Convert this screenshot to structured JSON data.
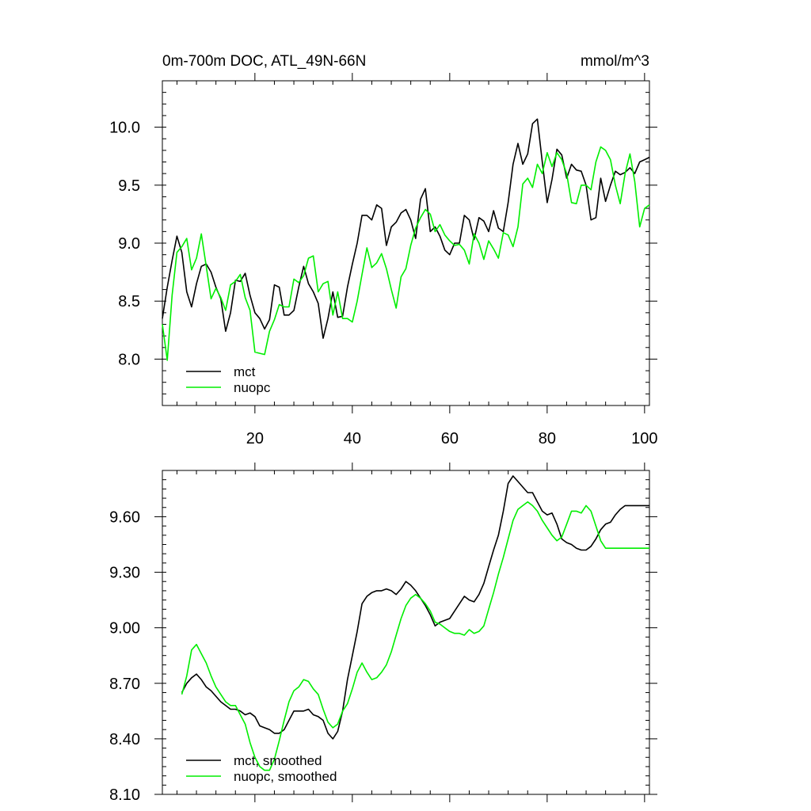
{
  "chart_data": [
    {
      "type": "line",
      "title": "0m-700m DOC, ATL_49N-66N",
      "units": "mmol/m^3",
      "xlabel": "",
      "ylabel": "",
      "xlim": [
        1,
        101
      ],
      "ylim": [
        7.6,
        10.4
      ],
      "xticks": [
        20,
        40,
        60,
        80,
        100
      ],
      "xtick_labels": [
        "20",
        "40",
        "60",
        "80",
        "100"
      ],
      "yticks": [
        8.0,
        8.5,
        9.0,
        9.5,
        10.0
      ],
      "ytick_labels": [
        "8.0",
        "8.5",
        "9.0",
        "9.5",
        "10.0"
      ],
      "legend_position": "bottom-left",
      "series": [
        {
          "name": "mct",
          "color": "#000000",
          "x": [
            1,
            2,
            3,
            4,
            5,
            6,
            7,
            8,
            9,
            10,
            11,
            12,
            13,
            14,
            15,
            16,
            17,
            18,
            19,
            20,
            21,
            22,
            23,
            24,
            25,
            26,
            27,
            28,
            29,
            30,
            31,
            32,
            33,
            34,
            35,
            36,
            37,
            38,
            39,
            40,
            41,
            42,
            43,
            44,
            45,
            46,
            47,
            48,
            49,
            50,
            51,
            52,
            53,
            54,
            55,
            56,
            57,
            58,
            59,
            60,
            61,
            62,
            63,
            64,
            65,
            66,
            67,
            68,
            69,
            70,
            71,
            72,
            73,
            74,
            75,
            76,
            77,
            78,
            79,
            80,
            81,
            82,
            83,
            84,
            85,
            86,
            87,
            88,
            89,
            90,
            91,
            92,
            93,
            94,
            95,
            96,
            97,
            98,
            99,
            100,
            101
          ],
          "values": [
            8.35,
            8.62,
            8.85,
            9.06,
            8.92,
            8.58,
            8.45,
            8.65,
            8.8,
            8.82,
            8.75,
            8.62,
            8.52,
            8.24,
            8.4,
            8.68,
            8.67,
            8.74,
            8.55,
            8.4,
            8.35,
            8.26,
            8.34,
            8.64,
            8.62,
            8.38,
            8.38,
            8.42,
            8.62,
            8.8,
            8.65,
            8.58,
            8.48,
            8.18,
            8.35,
            8.58,
            8.36,
            8.37,
            8.62,
            8.82,
            9.0,
            9.24,
            9.24,
            9.2,
            9.33,
            9.3,
            8.98,
            9.14,
            9.18,
            9.26,
            9.29,
            9.2,
            9.04,
            9.38,
            9.47,
            9.1,
            9.14,
            9.06,
            8.94,
            8.9,
            9.0,
            9.0,
            9.24,
            9.2,
            9.03,
            9.22,
            9.19,
            9.1,
            9.28,
            9.13,
            9.1,
            9.35,
            9.68,
            9.86,
            9.68,
            9.77,
            10.03,
            10.07,
            9.7,
            9.35,
            9.55,
            9.81,
            9.76,
            9.56,
            9.68,
            9.63,
            9.62,
            9.5,
            9.2,
            9.22,
            9.56,
            9.36,
            9.5,
            9.62,
            9.59,
            9.61,
            9.65,
            9.6,
            9.7,
            9.72,
            9.74
          ]
        },
        {
          "name": "nuopc",
          "color": "#00ee00",
          "x": [
            1,
            2,
            3,
            4,
            5,
            6,
            7,
            8,
            9,
            10,
            11,
            12,
            13,
            14,
            15,
            16,
            17,
            18,
            19,
            20,
            21,
            22,
            23,
            24,
            25,
            26,
            27,
            28,
            29,
            30,
            31,
            32,
            33,
            34,
            35,
            36,
            37,
            38,
            39,
            40,
            41,
            42,
            43,
            44,
            45,
            46,
            47,
            48,
            49,
            50,
            51,
            52,
            53,
            54,
            55,
            56,
            57,
            58,
            59,
            60,
            61,
            62,
            63,
            64,
            65,
            66,
            67,
            68,
            69,
            70,
            71,
            72,
            73,
            74,
            75,
            76,
            77,
            78,
            79,
            80,
            81,
            82,
            83,
            84,
            85,
            86,
            87,
            88,
            89,
            90,
            91,
            92,
            93,
            94,
            95,
            96,
            97,
            98,
            99,
            100,
            101
          ],
          "values": [
            8.3,
            7.99,
            8.55,
            8.92,
            8.97,
            9.04,
            8.77,
            8.87,
            9.08,
            8.8,
            8.52,
            8.61,
            8.53,
            8.42,
            8.64,
            8.67,
            8.73,
            8.53,
            8.42,
            8.06,
            8.05,
            8.04,
            8.24,
            8.34,
            8.47,
            8.45,
            8.45,
            8.69,
            8.66,
            8.72,
            8.87,
            8.89,
            8.58,
            8.65,
            8.67,
            8.38,
            8.58,
            8.35,
            8.35,
            8.32,
            8.5,
            8.73,
            8.96,
            8.79,
            8.83,
            8.91,
            8.78,
            8.6,
            8.44,
            8.71,
            8.78,
            8.98,
            9.13,
            9.22,
            9.29,
            9.25,
            9.1,
            9.16,
            9.07,
            9.02,
            8.98,
            8.99,
            8.94,
            8.82,
            9.08,
            9.0,
            8.86,
            9.02,
            8.95,
            8.87,
            9.09,
            9.07,
            8.97,
            9.14,
            9.51,
            9.56,
            9.48,
            9.68,
            9.6,
            9.78,
            9.66,
            9.78,
            9.72,
            9.6,
            9.35,
            9.34,
            9.5,
            9.5,
            9.46,
            9.7,
            9.83,
            9.8,
            9.72,
            9.5,
            9.34,
            9.6,
            9.77,
            9.53,
            9.14,
            9.3,
            9.33
          ]
        }
      ]
    },
    {
      "type": "line",
      "title": "",
      "xlabel": "",
      "ylabel": "",
      "xlim": [
        1,
        101
      ],
      "ylim": [
        8.1,
        9.85
      ],
      "xticks": [
        20,
        40,
        60,
        80,
        100
      ],
      "xtick_labels": [],
      "yticks": [
        8.1,
        8.4,
        8.7,
        9.0,
        9.3,
        9.6
      ],
      "ytick_labels": [
        "8.10",
        "8.40",
        "8.70",
        "9.00",
        "9.30",
        "9.60"
      ],
      "legend_position": "bottom-left",
      "series": [
        {
          "name": "mct, smoothed",
          "color": "#000000",
          "x": [
            5,
            6,
            7,
            8,
            9,
            10,
            11,
            12,
            13,
            14,
            15,
            16,
            17,
            18,
            19,
            20,
            21,
            22,
            23,
            24,
            25,
            26,
            27,
            28,
            29,
            30,
            31,
            32,
            33,
            34,
            35,
            36,
            37,
            38,
            39,
            40,
            41,
            42,
            43,
            44,
            45,
            46,
            47,
            48,
            49,
            50,
            51,
            52,
            53,
            54,
            55,
            56,
            57,
            58,
            59,
            60,
            61,
            62,
            63,
            64,
            65,
            66,
            67,
            68,
            69,
            70,
            71,
            72,
            73,
            74,
            75,
            76,
            77,
            78,
            79,
            80,
            81,
            82,
            83,
            84,
            85,
            86,
            87,
            88,
            89,
            90,
            91,
            92,
            93,
            94,
            95,
            96,
            97,
            98,
            99,
            100,
            101
          ],
          "values": [
            8.65,
            8.7,
            8.73,
            8.75,
            8.72,
            8.68,
            8.66,
            8.63,
            8.6,
            8.58,
            8.56,
            8.56,
            8.55,
            8.53,
            8.54,
            8.52,
            8.47,
            8.46,
            8.45,
            8.43,
            8.43,
            8.45,
            8.5,
            8.55,
            8.55,
            8.55,
            8.56,
            8.53,
            8.52,
            8.5,
            8.43,
            8.4,
            8.44,
            8.55,
            8.72,
            8.85,
            8.98,
            9.13,
            9.17,
            9.19,
            9.2,
            9.2,
            9.21,
            9.2,
            9.18,
            9.21,
            9.25,
            9.23,
            9.2,
            9.16,
            9.12,
            9.07,
            9.01,
            9.03,
            9.04,
            9.05,
            9.09,
            9.13,
            9.17,
            9.15,
            9.14,
            9.18,
            9.24,
            9.33,
            9.42,
            9.5,
            9.63,
            9.78,
            9.82,
            9.79,
            9.76,
            9.73,
            9.73,
            9.68,
            9.63,
            9.61,
            9.62,
            9.56,
            9.48,
            9.46,
            9.45,
            9.43,
            9.42,
            9.42,
            9.44,
            9.48,
            9.53,
            9.56,
            9.57,
            9.61,
            9.64,
            9.66,
            9.66,
            9.66,
            9.66,
            9.66,
            9.66
          ]
        },
        {
          "name": "nuopc, smoothed",
          "color": "#00ee00",
          "x": [
            5,
            6,
            7,
            8,
            9,
            10,
            11,
            12,
            13,
            14,
            15,
            16,
            17,
            18,
            19,
            20,
            21,
            22,
            23,
            24,
            25,
            26,
            27,
            28,
            29,
            30,
            31,
            32,
            33,
            34,
            35,
            36,
            37,
            38,
            39,
            40,
            41,
            42,
            43,
            44,
            45,
            46,
            47,
            48,
            49,
            50,
            51,
            52,
            53,
            54,
            55,
            56,
            57,
            58,
            59,
            60,
            61,
            62,
            63,
            64,
            65,
            66,
            67,
            68,
            69,
            70,
            71,
            72,
            73,
            74,
            75,
            76,
            77,
            78,
            79,
            80,
            81,
            82,
            83,
            84,
            85,
            86,
            87,
            88,
            89,
            90,
            91,
            92,
            93,
            94,
            95,
            96,
            97,
            98,
            99,
            100,
            101
          ],
          "values": [
            8.64,
            8.74,
            8.88,
            8.91,
            8.86,
            8.81,
            8.74,
            8.68,
            8.64,
            8.6,
            8.58,
            8.58,
            8.53,
            8.48,
            8.38,
            8.3,
            8.25,
            8.23,
            8.23,
            8.29,
            8.39,
            8.5,
            8.6,
            8.66,
            8.68,
            8.72,
            8.71,
            8.67,
            8.64,
            8.56,
            8.49,
            8.46,
            8.48,
            8.55,
            8.59,
            8.67,
            8.76,
            8.81,
            8.76,
            8.72,
            8.73,
            8.76,
            8.8,
            8.87,
            8.96,
            9.05,
            9.12,
            9.16,
            9.18,
            9.16,
            9.13,
            9.09,
            9.03,
            9.02,
            9.0,
            8.98,
            8.97,
            8.97,
            8.96,
            8.99,
            8.97,
            8.98,
            9.01,
            9.1,
            9.19,
            9.29,
            9.38,
            9.48,
            9.58,
            9.64,
            9.66,
            9.68,
            9.66,
            9.63,
            9.58,
            9.54,
            9.5,
            9.47,
            9.49,
            9.56,
            9.63,
            9.63,
            9.62,
            9.66,
            9.63,
            9.55,
            9.47,
            9.43,
            9.43,
            9.43,
            9.43,
            9.43,
            9.43,
            9.43,
            9.43,
            9.43,
            9.43
          ]
        }
      ]
    }
  ]
}
